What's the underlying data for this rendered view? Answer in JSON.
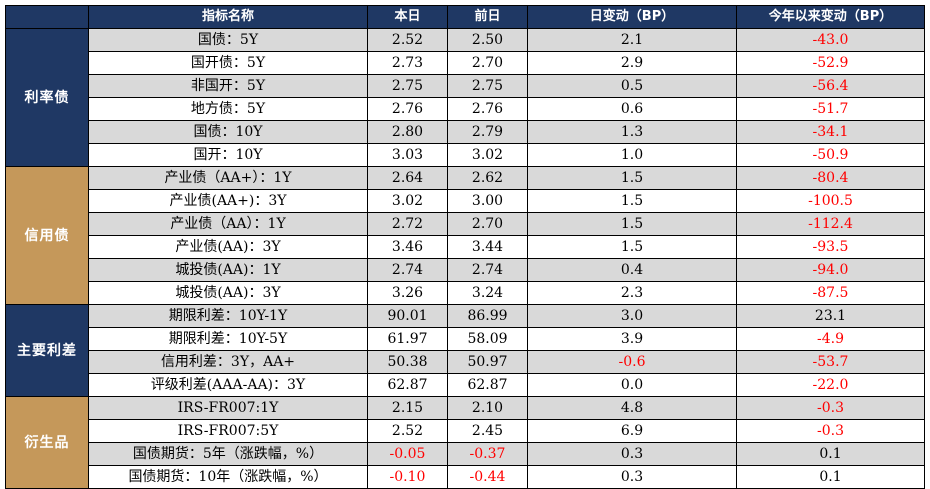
{
  "headers": [
    "",
    "指标名称",
    "本日",
    "前日",
    "日变动（BP）",
    "今年以来变动（BP）"
  ],
  "groups": [
    {
      "label": "利率债",
      "color": "#1f3864",
      "rows": [
        {
          "name": "国债：5Y",
          "today": "2.52",
          "prev": "2.50",
          "daily": "2.1",
          "ytd": "-43.0"
        },
        {
          "name": "国开债：5Y",
          "today": "2.73",
          "prev": "2.70",
          "daily": "2.9",
          "ytd": "-52.9"
        },
        {
          "name": "非国开：5Y",
          "today": "2.75",
          "prev": "2.75",
          "daily": "0.5",
          "ytd": "-56.4"
        },
        {
          "name": "地方债：5Y",
          "today": "2.76",
          "prev": "2.76",
          "daily": "0.6",
          "ytd": "-51.7"
        },
        {
          "name": "国债：10Y",
          "today": "2.80",
          "prev": "2.79",
          "daily": "1.3",
          "ytd": "-34.1"
        },
        {
          "name": "国开：10Y",
          "today": "3.03",
          "prev": "3.02",
          "daily": "1.0",
          "ytd": "-50.9"
        }
      ]
    },
    {
      "label": "信用债",
      "color": "#c5985a",
      "rows": [
        {
          "name": "产业债（AA+）：1Y",
          "today": "2.64",
          "prev": "2.62",
          "daily": "1.5",
          "ytd": "-80.4"
        },
        {
          "name": "产业债(AA+)：3Y",
          "today": "3.02",
          "prev": "3.00",
          "daily": "1.5",
          "ytd": "-100.5"
        },
        {
          "name": "产业债（AA）：1Y",
          "today": "2.72",
          "prev": "2.70",
          "daily": "1.5",
          "ytd": "-112.4"
        },
        {
          "name": "产业债(AA)：3Y",
          "today": "3.46",
          "prev": "3.44",
          "daily": "1.5",
          "ytd": "-93.5"
        },
        {
          "name": "城投债(AA)：1Y",
          "today": "2.74",
          "prev": "2.74",
          "daily": "0.4",
          "ytd": "-94.0"
        },
        {
          "name": "城投债(AA)：3Y",
          "today": "3.26",
          "prev": "3.24",
          "daily": "2.3",
          "ytd": "-87.5"
        }
      ]
    },
    {
      "label": "主要利差",
      "color": "#1f3864",
      "rows": [
        {
          "name": "期限利差：10Y-1Y",
          "today": "90.01",
          "prev": "86.99",
          "daily": "3.0",
          "ytd": "23.1"
        },
        {
          "name": "期限利差：10Y-5Y",
          "today": "61.97",
          "prev": "58.09",
          "daily": "3.9",
          "ytd": "-4.9"
        },
        {
          "name": "信用利差：3Y，AA+",
          "today": "50.38",
          "prev": "50.97",
          "daily": "-0.6",
          "ytd": "-53.7"
        },
        {
          "name": "评级利差(AAA-AA)：3Y",
          "today": "62.87",
          "prev": "62.87",
          "daily": "0.0",
          "ytd": "-22.0"
        }
      ]
    },
    {
      "label": "衍生品",
      "color": "#c5985a",
      "rows": [
        {
          "name": "IRS-FR007:1Y",
          "today": "2.15",
          "prev": "2.10",
          "daily": "4.8",
          "ytd": "-0.3"
        },
        {
          "name": "IRS-FR007:5Y",
          "today": "2.52",
          "prev": "2.45",
          "daily": "6.9",
          "ytd": "-0.3"
        },
        {
          "name": "国债期货：5年（涨跌幅，%）",
          "today": "-0.05",
          "prev": "-0.37",
          "daily": "0.3",
          "ytd": "0.1"
        },
        {
          "name": "国债期货：10年（涨跌幅，%）",
          "today": "-0.10",
          "prev": "-0.44",
          "daily": "0.3",
          "ytd": "0.1"
        }
      ]
    }
  ]
}
